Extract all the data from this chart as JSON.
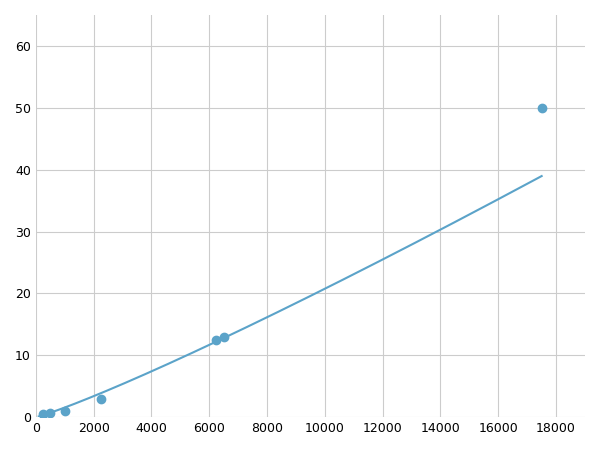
{
  "x_data": [
    250,
    500,
    1000,
    2250,
    6250,
    6500,
    17500
  ],
  "y_data": [
    0.5,
    0.7,
    1.0,
    3.0,
    12.5,
    13.0,
    50.0
  ],
  "line_color": "#5ba3c9",
  "marker_color": "#5ba3c9",
  "marker_size": 6,
  "line_width": 1.5,
  "xlim": [
    0,
    19000
  ],
  "ylim": [
    0,
    65
  ],
  "xticks": [
    0,
    2000,
    4000,
    6000,
    8000,
    10000,
    12000,
    14000,
    16000,
    18000
  ],
  "yticks": [
    0,
    10,
    20,
    30,
    40,
    50,
    60
  ],
  "grid_color": "#cccccc",
  "background_color": "#ffffff",
  "figsize": [
    6.0,
    4.5
  ],
  "dpi": 100
}
